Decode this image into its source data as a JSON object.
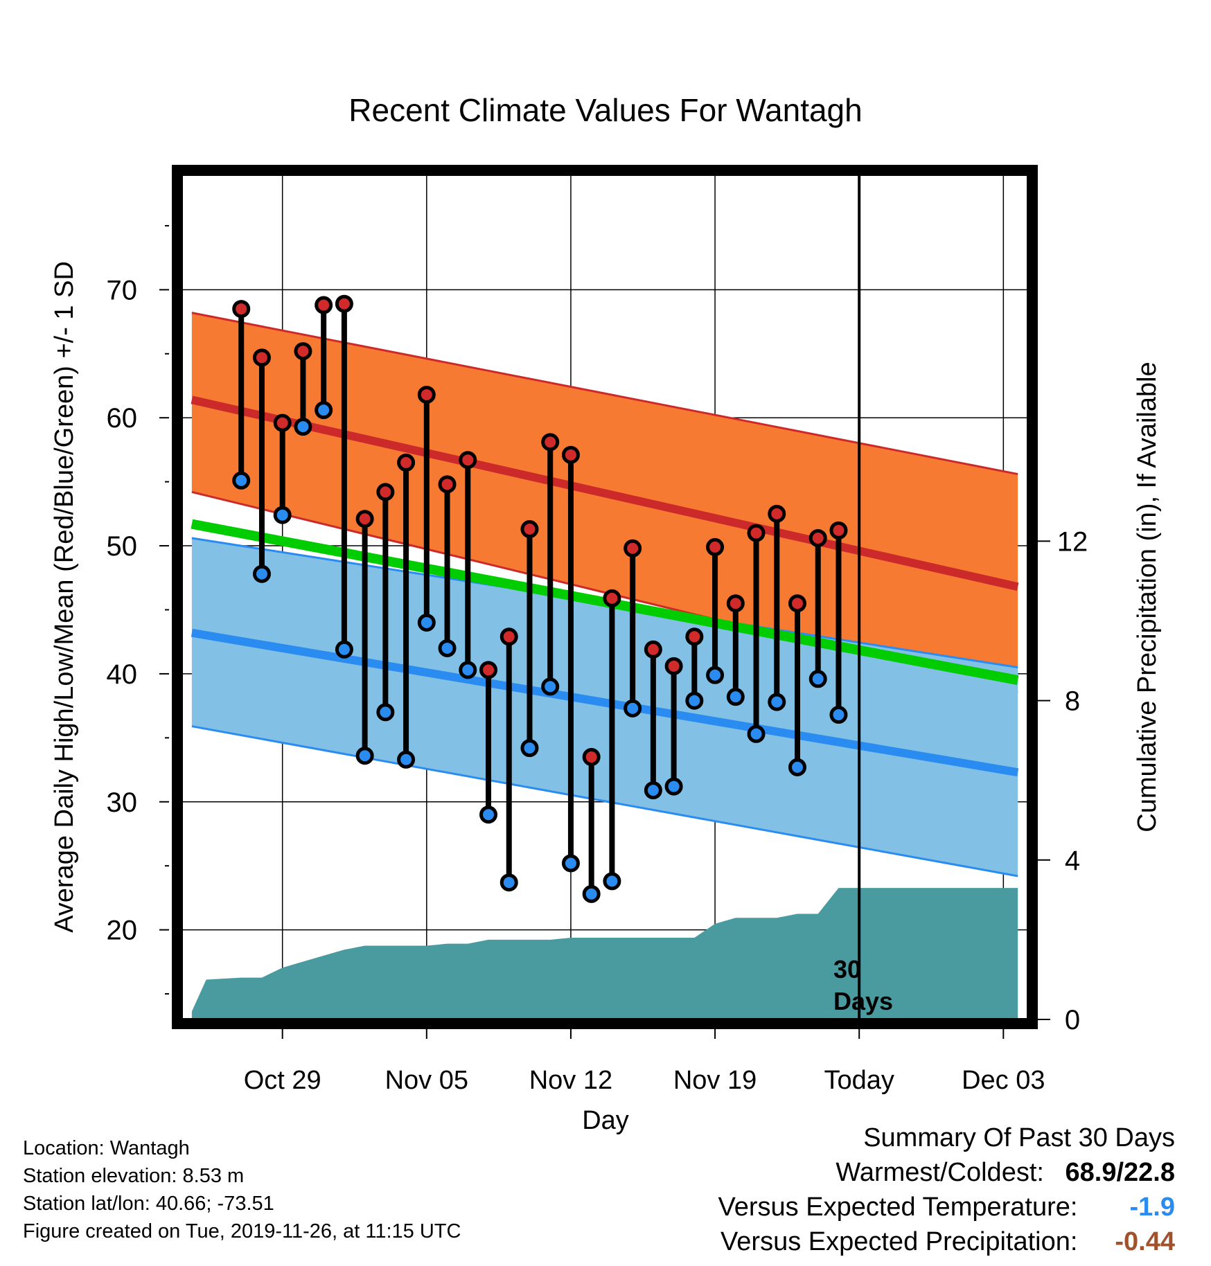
{
  "chart_data": {
    "type": "line",
    "title": "Recent Climate Values For Wantagh",
    "xlabel": "Day",
    "ylabel": "Average Daily High/Low/Mean (Red/Blue/Green) +/- 1 SD",
    "y2label": "Cumulative Precipitation (in), If Available",
    "ylim": [
      13,
      79
    ],
    "y2lim": [
      0,
      21.2
    ],
    "xlim": [
      -4.9,
      36.2
    ],
    "x_ticks": [
      {
        "day": 0,
        "label": "Oct 29"
      },
      {
        "day": 7,
        "label": "Nov 05"
      },
      {
        "day": 14,
        "label": "Nov 12"
      },
      {
        "day": 21,
        "label": "Nov 19"
      },
      {
        "day": 28,
        "label": "Today"
      },
      {
        "day": 35,
        "label": "Dec 03"
      }
    ],
    "y_ticks": [
      20,
      30,
      40,
      50,
      60,
      70
    ],
    "y2_ticks": [
      0,
      4,
      8,
      12
    ],
    "today_day": 28,
    "today_annotation_line1": "30",
    "today_annotation_line2": "Days",
    "grid": true,
    "normals": {
      "days": [
        -4.4,
        35.7
      ],
      "high_mean": [
        61.4,
        46.8
      ],
      "high_upper": [
        68.2,
        55.6
      ],
      "high_lower": [
        54.2,
        38.5
      ],
      "low_mean": [
        43.2,
        32.3
      ],
      "low_upper": [
        50.6,
        40.5
      ],
      "low_lower": [
        35.9,
        24.2
      ],
      "mean": [
        51.7,
        39.5
      ]
    },
    "colors": {
      "high_band": "#f67a32",
      "high_line": "#cc2a2a",
      "low_band": "#82c0e6",
      "low_line": "#2a8cf0",
      "mean_line": "#00cc00",
      "precip": "#4a9ba0",
      "high_dot": "#d02a2a",
      "low_dot": "#2a8cf0"
    },
    "observations": {
      "days": [
        -2,
        -1,
        0,
        1,
        2,
        3,
        4,
        5,
        6,
        7,
        8,
        9,
        10,
        11,
        12,
        13,
        14,
        15,
        16,
        17,
        18,
        19,
        20,
        21,
        22,
        23,
        24,
        25,
        26,
        27
      ],
      "highs": [
        68.5,
        64.7,
        59.6,
        65.2,
        68.8,
        68.9,
        52.1,
        54.2,
        56.5,
        61.8,
        54.8,
        56.7,
        40.3,
        42.9,
        51.3,
        58.1,
        57.1,
        33.5,
        45.9,
        49.8,
        41.9,
        40.6,
        42.9,
        49.9,
        45.5,
        51.0,
        52.5,
        45.5,
        50.6,
        51.2
      ],
      "lows": [
        55.1,
        47.8,
        52.4,
        59.3,
        60.6,
        41.9,
        33.6,
        37.0,
        33.3,
        44.0,
        42.0,
        40.3,
        29.0,
        23.7,
        34.2,
        39.0,
        25.2,
        22.8,
        23.8,
        37.3,
        30.9,
        31.2,
        37.9,
        39.9,
        38.2,
        35.3,
        37.8,
        32.7,
        39.6,
        36.8
      ]
    },
    "precip_cumulative": {
      "days": [
        -4.4,
        -3.7,
        -2,
        -1,
        0,
        1,
        2,
        3,
        4,
        5,
        6,
        7,
        8,
        9,
        10,
        11,
        12,
        13,
        14,
        15,
        16,
        17,
        18,
        19,
        20,
        21,
        22,
        23,
        24,
        25,
        26,
        27,
        35.7
      ],
      "values": [
        0.2,
        1.0,
        1.05,
        1.05,
        1.3,
        1.45,
        1.6,
        1.75,
        1.85,
        1.85,
        1.85,
        1.85,
        1.9,
        1.9,
        2.0,
        2.0,
        2.0,
        2.0,
        2.05,
        2.05,
        2.05,
        2.05,
        2.05,
        2.05,
        2.05,
        2.4,
        2.55,
        2.55,
        2.55,
        2.65,
        2.65,
        3.3,
        3.3
      ]
    }
  },
  "info": {
    "location": "Location: Wantagh",
    "elevation": "Station elevation: 8.53 m",
    "latlon": "Station lat/lon: 40.66; -73.51",
    "created": "Figure created on Tue, 2019-11-26, at 11:15 UTC"
  },
  "summary": {
    "heading": "Summary Of Past 30 Days",
    "warm_cold_label": "Warmest/Coldest:",
    "warm_cold_value": "68.9/22.8",
    "temp_label": "Versus Expected Temperature:",
    "temp_value": "-1.9",
    "precip_label": "Versus Expected Precipitation:",
    "precip_value": "-0.44"
  }
}
